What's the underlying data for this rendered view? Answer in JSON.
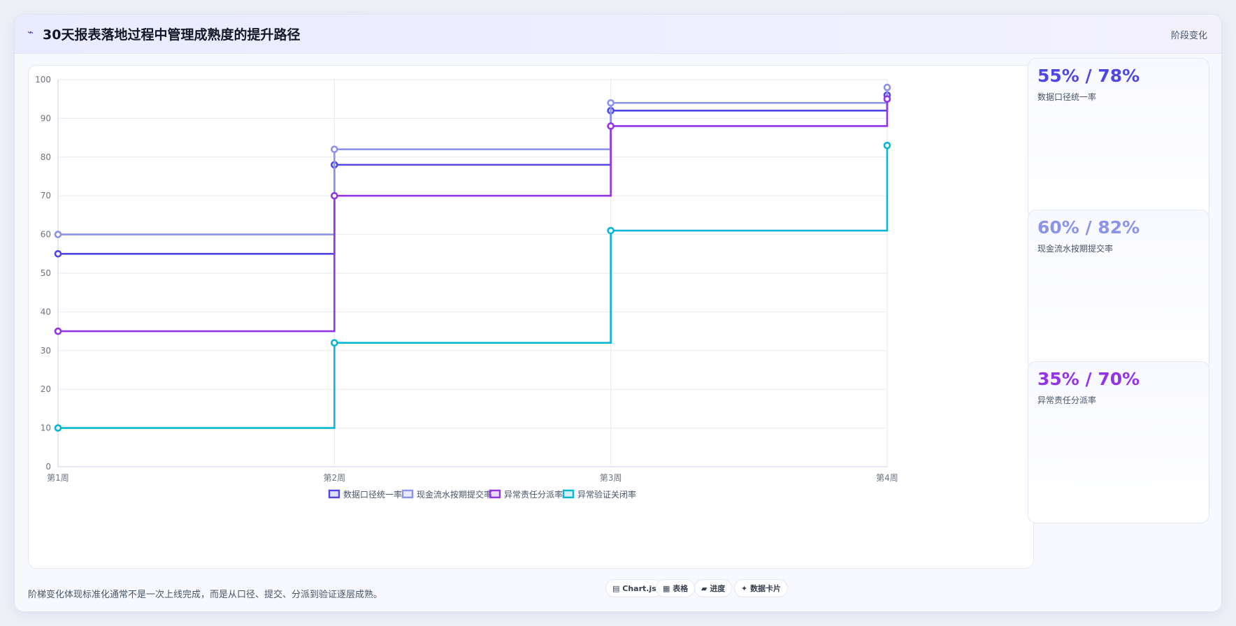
{
  "header": {
    "icon": "trend-icon",
    "title": "30天报表落地过程中管理成熟度的提升路径",
    "right_label": "阶段变化"
  },
  "chart_data": {
    "type": "line",
    "step": true,
    "categories": [
      "第1周",
      "第2周",
      "第3周",
      "第4周"
    ],
    "ylim": [
      0,
      100
    ],
    "yticks": [
      0,
      10,
      20,
      30,
      40,
      50,
      60,
      70,
      80,
      90,
      100
    ],
    "grid": true,
    "legend": "bottom",
    "series": [
      {
        "name": "数据口径统一率",
        "color": "#4f46e5",
        "values": [
          55,
          78,
          92,
          96
        ]
      },
      {
        "name": "现金流水按期提交率",
        "color": "#8b93ea",
        "values": [
          60,
          82,
          94,
          98
        ]
      },
      {
        "name": "异常责任分派率",
        "color": "#9333ea",
        "values": [
          35,
          70,
          88,
          95
        ]
      },
      {
        "name": "异常验证关闭率",
        "color": "#06b6d4",
        "values": [
          10,
          32,
          61,
          83
        ]
      }
    ]
  },
  "kpis": [
    {
      "value": "55% / 78%",
      "label": "数据口径统一率",
      "color": "#4f46e5"
    },
    {
      "value": "60% / 82%",
      "label": "现金流水按期提交率",
      "color": "#8b93ea"
    },
    {
      "value": "35% / 70%",
      "label": "异常责任分派率",
      "color": "#9333ea"
    }
  ],
  "footer": {
    "note": "阶梯变化体现标准化通常不是一次上线完成，而是从口径、提交、分派到验证逐层成熟。",
    "chips": [
      {
        "icon": "▤",
        "label": "Chart.js"
      },
      {
        "icon": "▦",
        "label": "表格"
      },
      {
        "icon": "▰",
        "label": "进度"
      },
      {
        "icon": "✦",
        "label": "数据卡片"
      }
    ]
  }
}
